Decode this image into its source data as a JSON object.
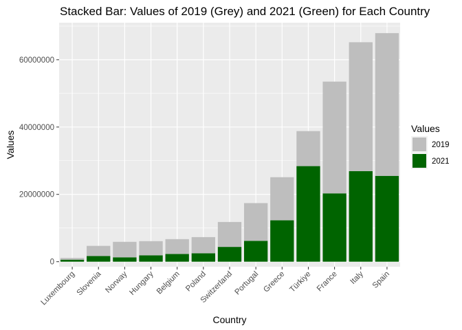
{
  "chart_data": {
    "type": "bar",
    "stacked": true,
    "title": "Stacked Bar: Values of 2019 (Grey) and 2021 (Green) for Each Country",
    "xlabel": "Country",
    "ylabel": "Values",
    "categories": [
      "Luxembourg",
      "Slovenia",
      "Norway",
      "Hungary",
      "Belgium",
      "Poland",
      "Switzerland",
      "Portugal",
      "Greece",
      "Türkiye",
      "France",
      "Italy",
      "Spain"
    ],
    "series": [
      {
        "name": "2021",
        "color": "#006400",
        "values": [
          600000,
          1700000,
          1300000,
          1900000,
          2300000,
          2500000,
          4400000,
          6200000,
          12300000,
          28400000,
          20300000,
          26900000,
          25500000
        ]
      },
      {
        "name": "2019",
        "color": "#bebebe",
        "values": [
          500000,
          3000000,
          4600000,
          4200000,
          4400000,
          4800000,
          7400000,
          11200000,
          12800000,
          10400000,
          33200000,
          38300000,
          42400000
        ]
      }
    ],
    "ylim": [
      -1500000,
      71000000
    ],
    "y_ticks": [
      0,
      20000000,
      40000000,
      60000000
    ],
    "y_tick_labels": [
      "0",
      "20000000",
      "40000000",
      "60000000"
    ],
    "grid": true,
    "legend": {
      "title": "Values",
      "position": "right",
      "items": [
        {
          "label": "2019",
          "color": "#bebebe"
        },
        {
          "label": "2021",
          "color": "#006400"
        }
      ]
    }
  }
}
